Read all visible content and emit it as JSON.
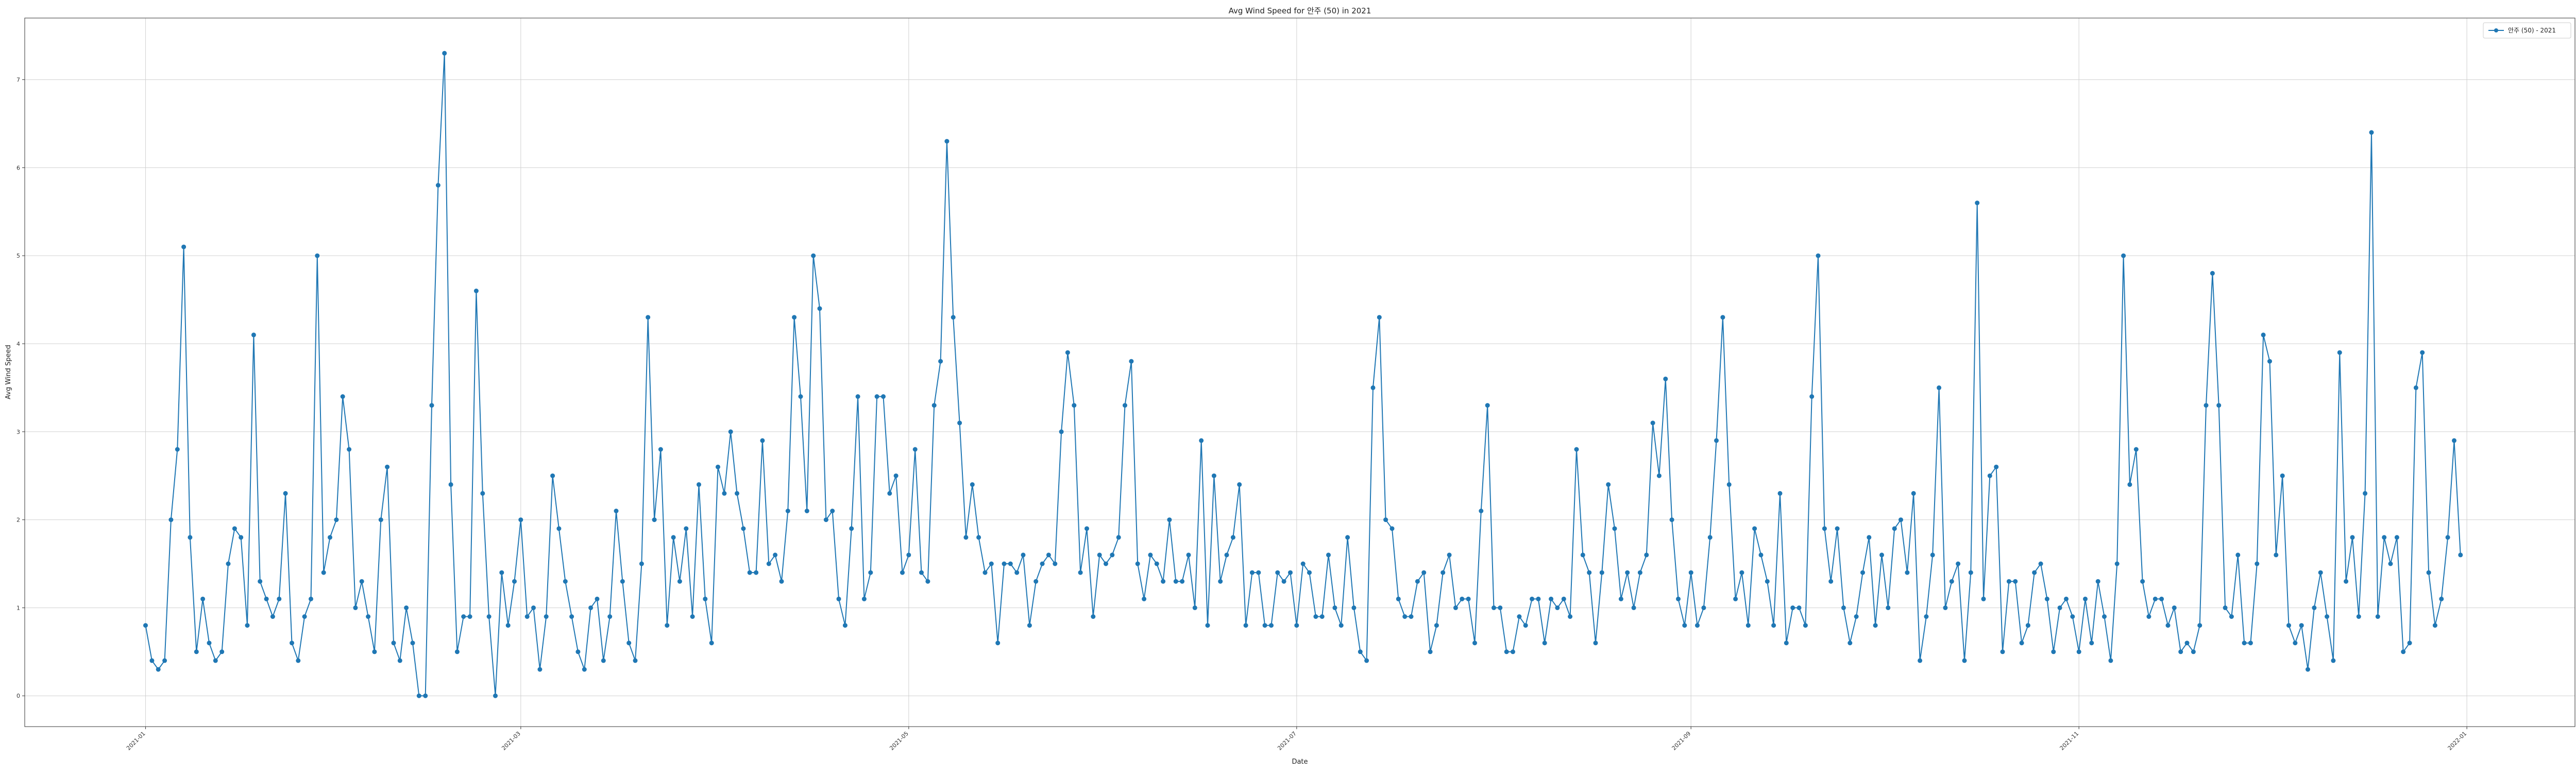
{
  "chart_data": {
    "type": "line",
    "title": "Avg Wind Speed for 안주 (50) in 2021",
    "xlabel": "Date",
    "ylabel": "Avg Wind Speed",
    "x_start": "2021-01-01",
    "x_end": "2021-12-31",
    "xlim": [
      "2020-12-13",
      "2022-01-18"
    ],
    "ylim": [
      -0.35,
      7.7
    ],
    "x_ticks": [
      "2021-01",
      "2021-03",
      "2021-05",
      "2021-07",
      "2021-09",
      "2021-11",
      "2022-01"
    ],
    "y_ticks": [
      0,
      1,
      2,
      3,
      4,
      5,
      6,
      7
    ],
    "grid": true,
    "legend_position": "top-right",
    "series_color": "#1f77b4",
    "series": [
      {
        "name": "안주 (50) - 2021",
        "values": [
          0.8,
          0.4,
          0.3,
          0.4,
          2.0,
          2.8,
          5.1,
          1.8,
          0.5,
          1.1,
          0.6,
          0.4,
          0.5,
          1.5,
          1.9,
          1.8,
          0.8,
          4.1,
          1.3,
          1.1,
          0.9,
          1.1,
          2.3,
          0.6,
          0.4,
          0.9,
          1.1,
          5.0,
          1.4,
          1.8,
          2.0,
          3.4,
          2.8,
          1.0,
          1.3,
          0.9,
          0.5,
          2.0,
          2.6,
          0.6,
          0.4,
          1.0,
          0.6,
          0.0,
          0.0,
          3.3,
          5.8,
          7.3,
          2.4,
          0.5,
          0.9,
          0.9,
          4.6,
          2.3,
          0.9,
          0.0,
          1.4,
          0.8,
          1.3,
          2.0,
          0.9,
          1.0,
          0.3,
          0.9,
          2.5,
          1.9,
          1.3,
          0.9,
          0.5,
          0.3,
          1.0,
          1.1,
          0.4,
          0.9,
          2.1,
          1.3,
          0.6,
          0.4,
          1.5,
          4.3,
          2.0,
          2.8,
          0.8,
          1.8,
          1.3,
          1.9,
          0.9,
          2.4,
          1.1,
          0.6,
          2.6,
          2.3,
          3.0,
          2.3,
          1.9,
          1.4,
          1.4,
          2.9,
          1.5,
          1.6,
          1.3,
          2.1,
          4.3,
          3.4,
          2.1,
          5.0,
          4.4,
          2.0,
          2.1,
          1.1,
          0.8,
          1.9,
          3.4,
          1.1,
          1.4,
          3.4,
          3.4,
          2.3,
          2.5,
          1.4,
          1.6,
          2.8,
          1.4,
          1.3,
          3.3,
          3.8,
          6.3,
          4.3,
          3.1,
          1.8,
          2.4,
          1.8,
          1.4,
          1.5,
          0.6,
          1.5,
          1.5,
          1.4,
          1.6,
          0.8,
          1.3,
          1.5,
          1.6,
          1.5,
          3.0,
          3.9,
          3.3,
          1.4,
          1.9,
          0.9,
          1.6,
          1.5,
          1.6,
          1.8,
          3.3,
          3.8,
          1.5,
          1.1,
          1.6,
          1.5,
          1.3,
          2.0,
          1.3,
          1.3,
          1.6,
          1.0,
          2.9,
          0.8,
          2.5,
          1.3,
          1.6,
          1.8,
          2.4,
          0.8,
          1.4,
          1.4,
          0.8,
          0.8,
          1.4,
          1.3,
          1.4,
          0.8,
          1.5,
          1.4,
          0.9,
          0.9,
          1.6,
          1.0,
          0.8,
          1.8,
          1.0,
          0.5,
          0.4,
          3.5,
          4.3,
          2.0,
          1.9,
          1.1,
          0.9,
          0.9,
          1.3,
          1.4,
          0.5,
          0.8,
          1.4,
          1.6,
          1.0,
          1.1,
          1.1,
          0.6,
          2.1,
          3.3,
          1.0,
          1.0,
          0.5,
          0.5,
          0.9,
          0.8,
          1.1,
          1.1,
          0.6,
          1.1,
          1.0,
          1.1,
          0.9,
          2.8,
          1.6,
          1.4,
          0.6,
          1.4,
          2.4,
          1.9,
          1.1,
          1.4,
          1.0,
          1.4,
          1.6,
          3.1,
          2.5,
          3.6,
          2.0,
          1.1,
          0.8,
          1.4,
          0.8,
          1.0,
          1.8,
          2.9,
          4.3,
          2.4,
          1.1,
          1.4,
          0.8,
          1.9,
          1.6,
          1.3,
          0.8,
          2.3,
          0.6,
          1.0,
          1.0,
          0.8,
          3.4,
          5.0,
          1.9,
          1.3,
          1.9,
          1.0,
          0.6,
          0.9,
          1.4,
          1.8,
          0.8,
          1.6,
          1.0,
          1.9,
          2.0,
          1.4,
          2.3,
          0.4,
          0.9,
          1.6,
          3.5,
          1.0,
          1.3,
          1.5,
          0.4,
          1.4,
          5.6,
          1.1,
          2.5,
          2.6,
          0.5,
          1.3,
          1.3,
          0.6,
          0.8,
          1.4,
          1.5,
          1.1,
          0.5,
          1.0,
          1.1,
          0.9,
          0.5,
          1.1,
          0.6,
          1.3,
          0.9,
          0.4,
          1.5,
          5.0,
          2.4,
          2.8,
          1.3,
          0.9,
          1.1,
          1.1,
          0.8,
          1.0,
          0.5,
          0.6,
          0.5,
          0.8,
          3.3,
          4.8,
          3.3,
          1.0,
          0.9,
          1.6,
          0.6,
          0.6,
          1.5,
          4.1,
          3.8,
          1.6,
          2.5,
          0.8,
          0.6,
          0.8,
          0.3,
          1.0,
          1.4,
          0.9,
          0.4,
          3.9,
          1.3,
          1.8,
          0.9,
          2.3,
          6.4,
          0.9,
          1.8,
          1.5,
          1.8,
          0.5,
          0.6,
          3.5,
          3.9,
          1.4,
          0.8,
          1.1,
          1.8,
          2.9,
          1.6
        ]
      }
    ]
  }
}
